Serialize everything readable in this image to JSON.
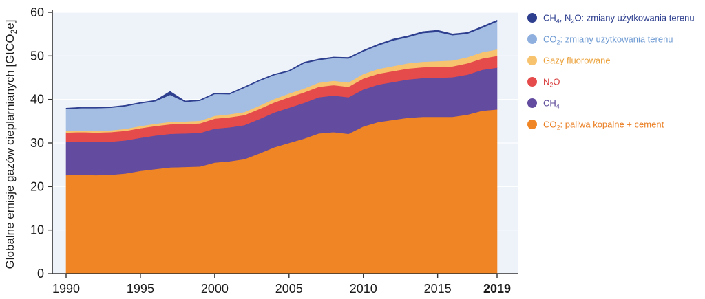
{
  "chart_data": {
    "type": "area",
    "stacked": true,
    "ylabel_parts": [
      "Globalne emisje gazów cieplarnianych [GtCO",
      "2",
      "e]"
    ],
    "xlabel": "",
    "ylim": [
      0,
      60
    ],
    "y_ticks": [
      0,
      10,
      20,
      30,
      40,
      50,
      60
    ],
    "x_ticks": [
      "1990",
      "1995",
      "2000",
      "2005",
      "2010",
      "2015",
      "2019"
    ],
    "x_tick_values": [
      1990,
      1995,
      2000,
      2005,
      2010,
      2015,
      2019
    ],
    "x_bold_tick": "2019",
    "grid": true,
    "legend_position": "right",
    "years": [
      1990,
      1991,
      1992,
      1993,
      1994,
      1995,
      1996,
      1997,
      1998,
      1999,
      2000,
      2001,
      2002,
      2003,
      2004,
      2005,
      2006,
      2007,
      2008,
      2009,
      2010,
      2011,
      2012,
      2013,
      2014,
      2015,
      2016,
      2017,
      2018,
      2019
    ],
    "series": [
      {
        "key": "co2_fossil",
        "name": "CO2: paliwa kopalne + cement",
        "color": "#ef8525",
        "values": [
          22.6,
          22.7,
          22.6,
          22.7,
          23.0,
          23.6,
          24.0,
          24.4,
          24.5,
          24.6,
          25.5,
          25.8,
          26.3,
          27.6,
          29.0,
          30.0,
          31.0,
          32.2,
          32.5,
          32.1,
          33.8,
          34.8,
          35.3,
          35.8,
          36.0,
          36.0,
          36.0,
          36.5,
          37.4,
          37.7
        ]
      },
      {
        "key": "ch4",
        "name": "CH4",
        "color": "#634b9f",
        "values": [
          7.6,
          7.6,
          7.6,
          7.6,
          7.6,
          7.6,
          7.7,
          7.7,
          7.7,
          7.7,
          7.8,
          7.8,
          7.8,
          7.9,
          8.0,
          8.1,
          8.2,
          8.3,
          8.4,
          8.4,
          8.5,
          8.6,
          8.7,
          8.8,
          8.9,
          9.0,
          9.1,
          9.2,
          9.4,
          9.6
        ]
      },
      {
        "key": "n2o",
        "name": "N2O",
        "color": "#e54b4b",
        "values": [
          2.2,
          2.2,
          2.2,
          2.2,
          2.2,
          2.2,
          2.2,
          2.2,
          2.2,
          2.2,
          2.3,
          2.3,
          2.3,
          2.3,
          2.3,
          2.4,
          2.4,
          2.4,
          2.4,
          2.4,
          2.5,
          2.5,
          2.5,
          2.5,
          2.5,
          2.5,
          2.5,
          2.6,
          2.6,
          2.7
        ]
      },
      {
        "key": "fgas",
        "name": "Gazy fluorowane",
        "color": "#f8c36e",
        "values": [
          0.4,
          0.4,
          0.4,
          0.4,
          0.45,
          0.5,
          0.5,
          0.55,
          0.55,
          0.6,
          0.65,
          0.7,
          0.7,
          0.75,
          0.8,
          0.85,
          0.9,
          0.95,
          1.0,
          1.0,
          1.05,
          1.1,
          1.15,
          1.2,
          1.25,
          1.3,
          1.35,
          1.4,
          1.45,
          1.5
        ]
      },
      {
        "key": "co2_luc",
        "name": "CO2: zmiany użytkowania terenu",
        "color": "#a3bde3",
        "values": [
          5.0,
          5.1,
          5.2,
          5.2,
          5.2,
          5.2,
          5.2,
          6.2,
          4.5,
          4.6,
          5.0,
          4.6,
          5.6,
          5.7,
          5.5,
          5.1,
          5.8,
          5.2,
          5.2,
          5.5,
          5.2,
          5.4,
          5.9,
          6.0,
          6.6,
          6.7,
          5.8,
          5.4,
          5.6,
          6.4
        ]
      },
      {
        "key": "ch4_n2o_luc",
        "name": "CH4, N2O: zmiany użytkowania terenu",
        "color": "#2e3f8f",
        "values": [
          0.2,
          0.2,
          0.2,
          0.2,
          0.2,
          0.2,
          0.2,
          0.8,
          0.2,
          0.2,
          0.2,
          0.2,
          0.2,
          0.2,
          0.2,
          0.2,
          0.25,
          0.25,
          0.25,
          0.25,
          0.25,
          0.3,
          0.3,
          0.3,
          0.35,
          0.4,
          0.3,
          0.3,
          0.3,
          0.3
        ]
      }
    ],
    "legend": [
      {
        "color": "#2e3f8f",
        "text_color": "#2e3f8f",
        "parts": [
          [
            "CH",
            false
          ],
          [
            "4",
            true
          ],
          [
            ", N",
            false
          ],
          [
            "2",
            true
          ],
          [
            "O: zmiany użytkowania terenu",
            false
          ]
        ]
      },
      {
        "color": "#8fb0de",
        "text_color": "#6f9bd3",
        "parts": [
          [
            "CO",
            false
          ],
          [
            "2",
            true
          ],
          [
            ": zmiany użytkowania terenu",
            false
          ]
        ]
      },
      {
        "color": "#f8c36e",
        "text_color": "#eba23c",
        "parts": [
          [
            "Gazy fluorowane",
            false
          ]
        ]
      },
      {
        "color": "#e54b4b",
        "text_color": "#d83a3a",
        "parts": [
          [
            "N",
            false
          ],
          [
            "2",
            true
          ],
          [
            "O",
            false
          ]
        ]
      },
      {
        "color": "#634b9f",
        "text_color": "#5a4597",
        "parts": [
          [
            "CH",
            false
          ],
          [
            "4",
            true
          ]
        ]
      },
      {
        "color": "#ef8525",
        "text_color": "#e97c1f",
        "parts": [
          [
            "CO",
            false
          ],
          [
            "2",
            true
          ],
          [
            ": paliwa kopalne + cement",
            false
          ]
        ]
      }
    ],
    "plot_background": "#eef3fa"
  }
}
